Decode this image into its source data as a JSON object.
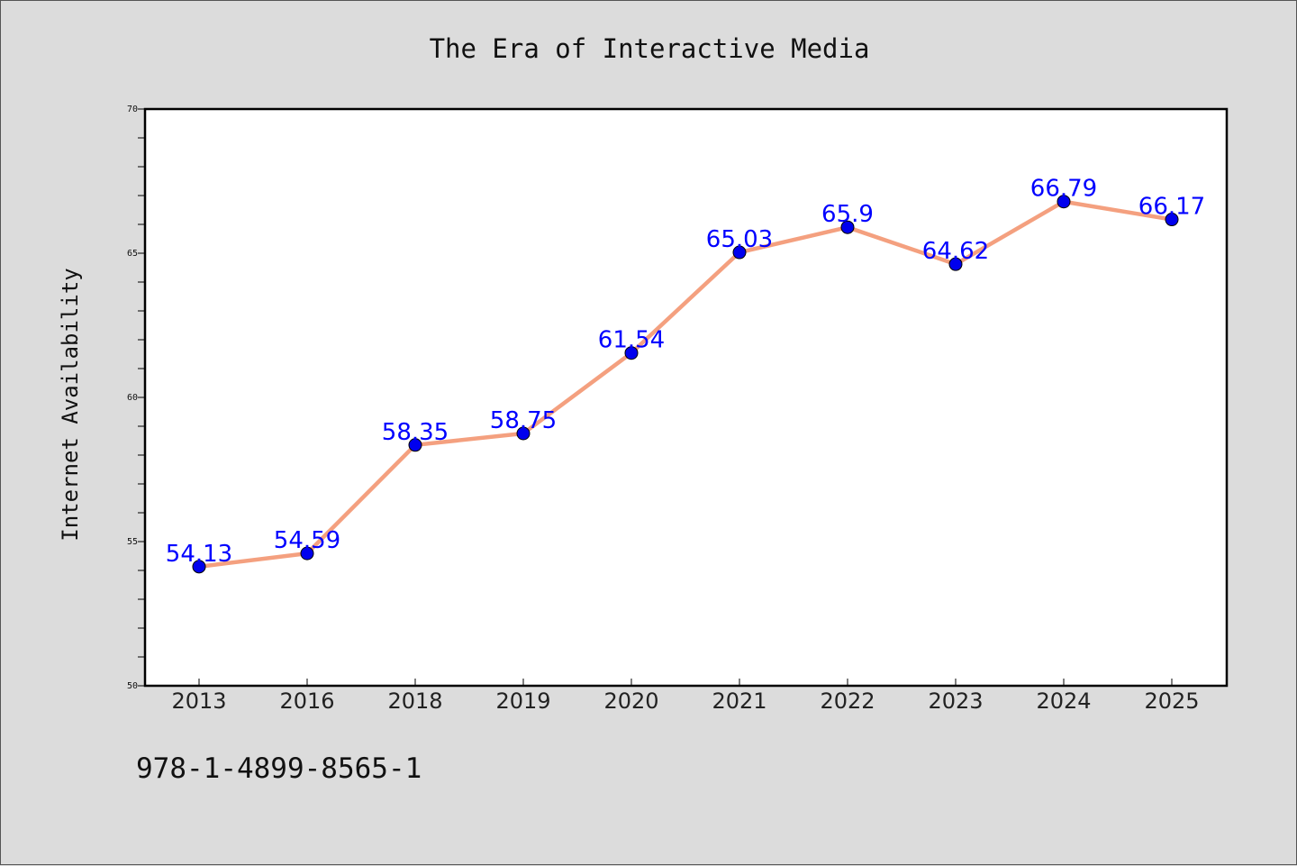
{
  "chart_data": {
    "type": "line",
    "title": "The Era of Interactive Media",
    "xlabel": "",
    "ylabel": "Internet Availability",
    "categories": [
      "2013",
      "2016",
      "2018",
      "2019",
      "2020",
      "2021",
      "2022",
      "2023",
      "2024",
      "2025"
    ],
    "series": [
      {
        "values": [
          54.13,
          54.59,
          58.35,
          58.75,
          61.54,
          65.03,
          65.9,
          64.62,
          66.79,
          66.17
        ],
        "data_labels": [
          "54.13",
          "54.59",
          "58.35",
          "58.75",
          "61.54",
          "65.03",
          "65.9",
          "64.62",
          "66.79",
          "66.17"
        ]
      }
    ],
    "ylim": [
      50,
      70
    ],
    "yticks": [
      "50",
      "55",
      "60",
      "65",
      "70"
    ],
    "grid": false,
    "legend": "none",
    "colors": {
      "line": "#f4a07f",
      "marker": "#0000ee",
      "data_label": "#0000ff",
      "background": "#dcdcdc",
      "plot_area": "#ffffff"
    }
  },
  "footer": {
    "isbn": "978-1-4899-8565-1"
  }
}
